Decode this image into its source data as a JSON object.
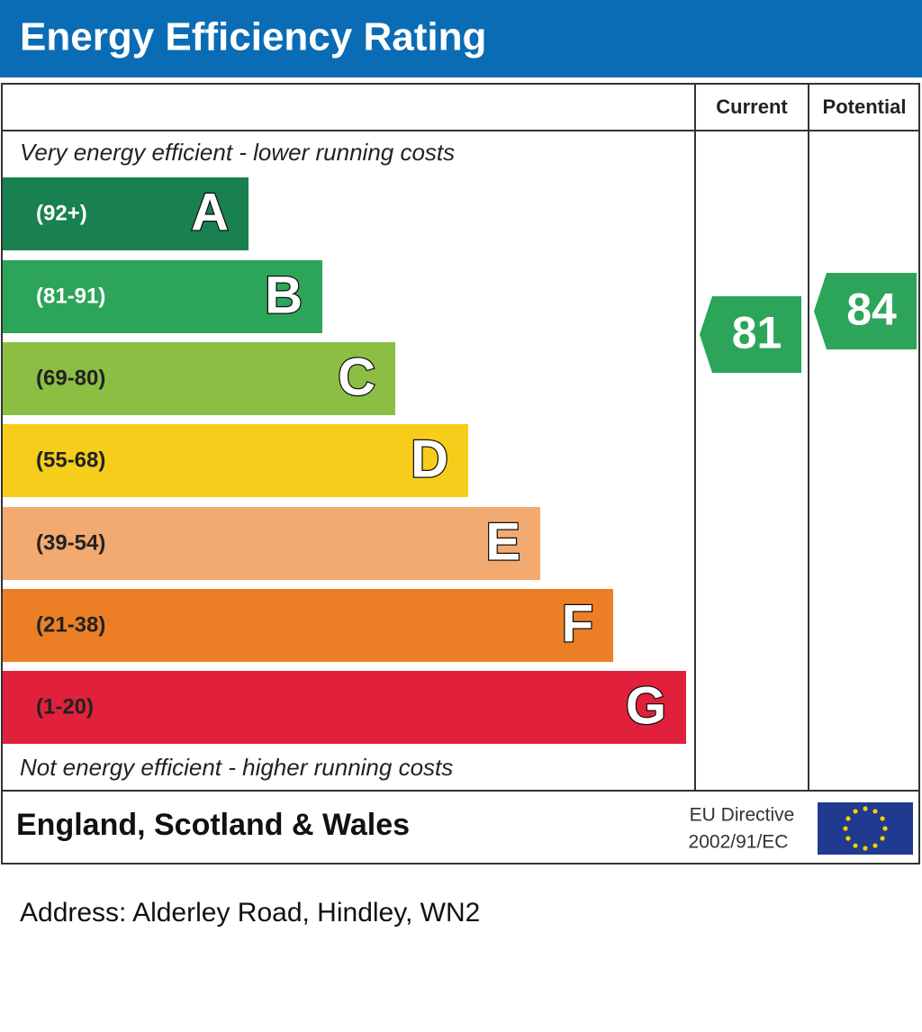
{
  "title": "Energy Efficiency Rating",
  "columns": [
    "Current",
    "Potential"
  ],
  "top_note": "Very energy efficient - lower running costs",
  "bands": [
    {
      "range": "(92+)",
      "letter": "A",
      "color": "#19804f",
      "text_color": "#ffffff"
    },
    {
      "range": "(81-91)",
      "letter": "B",
      "color": "#2ca55a",
      "text_color": "#ffffff"
    },
    {
      "range": "(69-80)",
      "letter": "C",
      "color": "#8dbe44",
      "text_color": "#222222"
    },
    {
      "range": "(55-68)",
      "letter": "D",
      "color": "#f6cd1a",
      "text_color": "#222222"
    },
    {
      "range": "(39-54)",
      "letter": "E",
      "color": "#f2aa70",
      "text_color": "#222222"
    },
    {
      "range": "(21-38)",
      "letter": "F",
      "color": "#ec7f26",
      "text_color": "#222222"
    },
    {
      "range": "(1-20)",
      "letter": "G",
      "color": "#e1213b",
      "text_color": "#222222"
    }
  ],
  "bottom_note": "Not energy efficient - higher running costs",
  "current": {
    "value": 81,
    "color": "#2ca55a"
  },
  "potential": {
    "value": 84,
    "color": "#2ca55a"
  },
  "footer": {
    "region": "England, Scotland & Wales",
    "directive": [
      "EU Directive",
      "2002/91/EC"
    ]
  },
  "address": "Address: Alderley Road, Hindley, WN2"
}
